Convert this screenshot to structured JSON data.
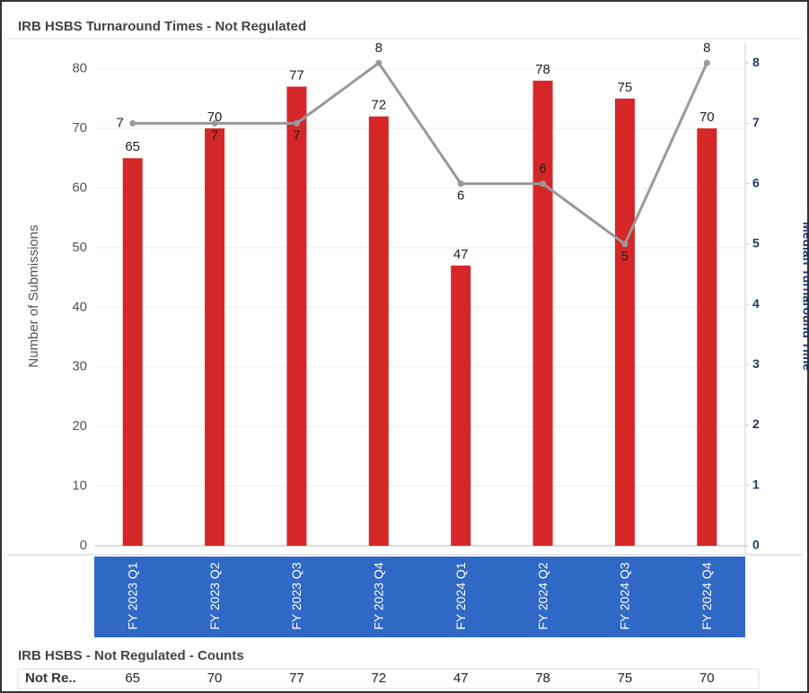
{
  "chart_data": {
    "type": "bar",
    "title": "IRB HSBS Turnaround Times - Not Regulated",
    "y_label": "Number of Submissions",
    "y2_label": "Median Turnaround Time",
    "categories": [
      "FY 2023 Q1",
      "FY 2023 Q2",
      "FY 2023 Q3",
      "FY 2023 Q4",
      "FY 2024 Q1",
      "FY 2024 Q2",
      "FY 2024 Q3",
      "FY 2024 Q4"
    ],
    "series": [
      {
        "type": "bar",
        "color": "#d62728",
        "values": [
          65,
          70,
          77,
          72,
          47,
          78,
          75,
          70
        ]
      },
      {
        "type": "line",
        "color": "#999999",
        "axis": "y2",
        "values": [
          7,
          7,
          7,
          8,
          6,
          6,
          5,
          8
        ]
      }
    ],
    "ylim": [
      0,
      84
    ],
    "yticks": [
      0,
      10,
      20,
      30,
      40,
      50,
      60,
      70,
      80
    ],
    "y2lim": [
      0,
      8.3
    ],
    "y2ticks": [
      0,
      1,
      2,
      3,
      4,
      5,
      6,
      7,
      8
    ],
    "grid": true
  },
  "table": {
    "title": "IRB HSBS - Not Regulated - Counts",
    "row_label": "Not Re.."
  }
}
